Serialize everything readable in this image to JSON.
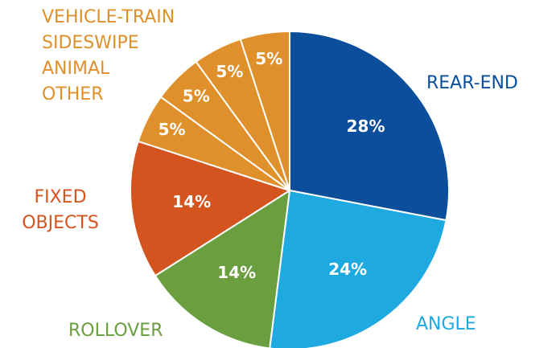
{
  "chart_data": {
    "type": "pie",
    "categories": [
      "REAR-END",
      "ANGLE",
      "ROLLOVER",
      "FIXED OBJECTS",
      "OTHER",
      "ANIMAL",
      "SIDESWIPE",
      "VEHICLE-TRAIN"
    ],
    "values": [
      28,
      24,
      14,
      14,
      5,
      5,
      5,
      5
    ],
    "value_labels": [
      "28%",
      "24%",
      "14%",
      "14%",
      "5%",
      "5%",
      "5%",
      "5%"
    ],
    "colors": [
      "#0b4f9c",
      "#1ea9e1",
      "#6a9e3f",
      "#d4541f",
      "#e0902a",
      "#e0902a",
      "#e0902a",
      "#e0902a"
    ]
  }
}
